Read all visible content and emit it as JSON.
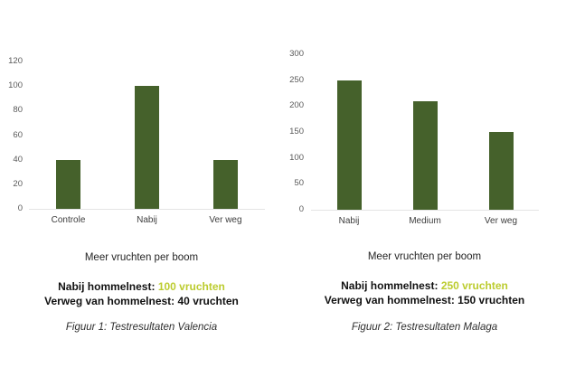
{
  "colors": {
    "bar": "#45612b",
    "accent": "#bccc2f",
    "axis_line": "#e4e4e4"
  },
  "chart_data": [
    {
      "type": "bar",
      "categories": [
        "Controle",
        "Nabij",
        "Ver weg"
      ],
      "values": [
        40,
        100,
        40
      ],
      "title": "",
      "xlabel": "",
      "ylabel": "",
      "ylim": [
        0,
        120
      ],
      "yticks": [
        0,
        20,
        40,
        60,
        80,
        100,
        120
      ],
      "grid": false,
      "legend": null,
      "subtitle": "Meer vruchten per boom",
      "highlight_label": "Nabij hommelnest:",
      "highlight_value": "100 vruchten",
      "secondary_line": "Verweg van hommelnest: 40 vruchten",
      "caption": "Figuur 1: Testresultaten Valencia"
    },
    {
      "type": "bar",
      "categories": [
        "Nabij",
        "Medium",
        "Ver weg"
      ],
      "values": [
        250,
        210,
        150
      ],
      "title": "",
      "xlabel": "",
      "ylabel": "",
      "ylim": [
        0,
        300
      ],
      "yticks": [
        0,
        50,
        100,
        150,
        200,
        250,
        300
      ],
      "grid": false,
      "legend": null,
      "subtitle": "Meer vruchten per boom",
      "highlight_label": "Nabij hommelnest:",
      "highlight_value": "250 vruchten",
      "secondary_line": "Verweg van hommelnest: 150 vruchten",
      "caption": "Figuur 2: Testresultaten Malaga"
    }
  ]
}
